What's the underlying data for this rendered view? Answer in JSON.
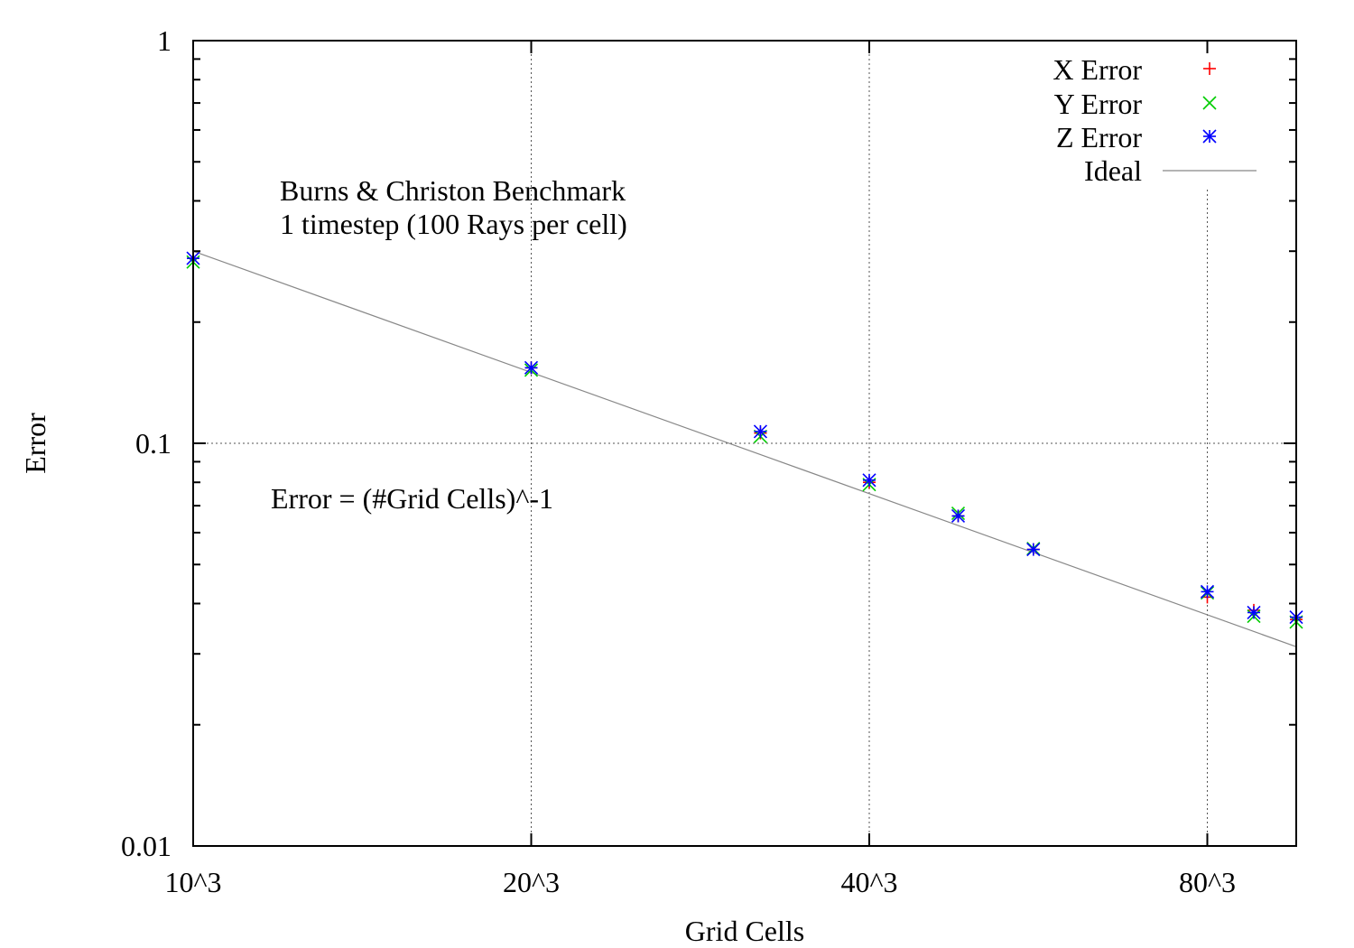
{
  "chart_data": {
    "type": "scatter",
    "title": "",
    "xlabel": "Grid Cells",
    "ylabel": "Error",
    "x_scale": "log",
    "y_scale": "log",
    "xlim": [
      10,
      96
    ],
    "ylim": [
      0.01,
      1
    ],
    "grid": true,
    "legend_position": "top-right",
    "x_ticks": [
      {
        "value": 10,
        "label": "10^3"
      },
      {
        "value": 20,
        "label": "20^3"
      },
      {
        "value": 40,
        "label": "40^3"
      },
      {
        "value": 80,
        "label": "80^3"
      }
    ],
    "y_ticks": [
      {
        "value": 0.01,
        "label": "0.01"
      },
      {
        "value": 0.1,
        "label": "0.1"
      },
      {
        "value": 1,
        "label": "1"
      }
    ],
    "annotations": [
      {
        "lines": [
          "Burns & Christon Benchmark",
          "1 timestep (100 Rays per cell)"
        ]
      },
      {
        "lines": [
          "Error = (#Grid Cells)^-1"
        ]
      }
    ],
    "series": [
      {
        "name": "X Error",
        "marker": "plus",
        "color": "#ff0000",
        "points": [
          [
            10,
            0.288
          ],
          [
            20,
            0.154
          ],
          [
            32,
            0.106
          ],
          [
            40,
            0.08
          ],
          [
            48,
            0.066
          ],
          [
            56,
            0.0545
          ],
          [
            80,
            0.0415
          ],
          [
            88,
            0.0385
          ],
          [
            96,
            0.0365
          ]
        ]
      },
      {
        "name": "Y Error",
        "marker": "cross",
        "color": "#00cc00",
        "points": [
          [
            10,
            0.282
          ],
          [
            20,
            0.152
          ],
          [
            32,
            0.104
          ],
          [
            40,
            0.079
          ],
          [
            48,
            0.067
          ],
          [
            56,
            0.0548
          ],
          [
            80,
            0.0425
          ],
          [
            88,
            0.0372
          ],
          [
            96,
            0.036
          ]
        ]
      },
      {
        "name": "Z Error",
        "marker": "star",
        "color": "#0000ff",
        "points": [
          [
            10,
            0.288
          ],
          [
            20,
            0.154
          ],
          [
            32,
            0.107
          ],
          [
            40,
            0.081
          ],
          [
            48,
            0.066
          ],
          [
            56,
            0.0545
          ],
          [
            80,
            0.0428
          ],
          [
            88,
            0.038
          ],
          [
            96,
            0.037
          ]
        ]
      },
      {
        "name": "Ideal",
        "marker": "line",
        "color": "#888888",
        "line": [
          [
            10,
            0.3
          ],
          [
            96,
            0.03125
          ]
        ]
      }
    ]
  }
}
